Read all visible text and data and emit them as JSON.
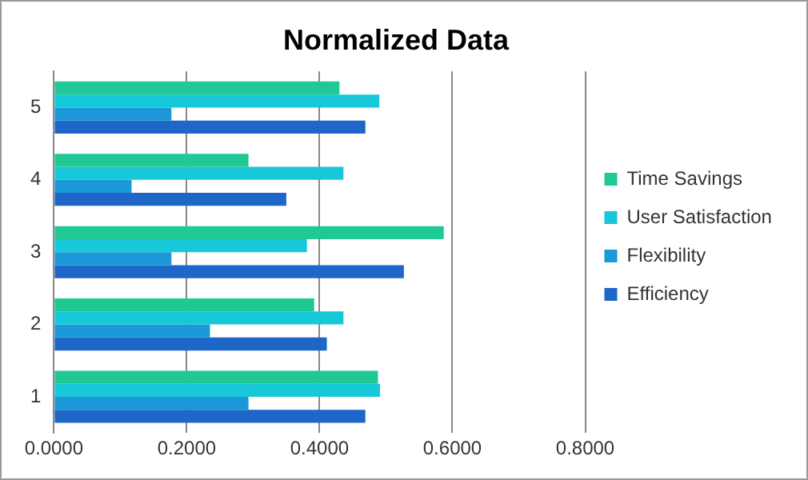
{
  "chart_data": {
    "type": "bar",
    "orientation": "horizontal",
    "title": "Normalized Data",
    "categories": [
      "5",
      "4",
      "3",
      "2",
      "1"
    ],
    "series": [
      {
        "name": "Time Savings",
        "color": "#20c896",
        "values": [
          0.43,
          0.293,
          0.587,
          0.392,
          0.488
        ]
      },
      {
        "name": "User Satisfaction",
        "color": "#16c8d8",
        "values": [
          0.49,
          0.436,
          0.381,
          0.436,
          0.491
        ]
      },
      {
        "name": "Flexibility",
        "color": "#1a98d8",
        "values": [
          0.177,
          0.117,
          0.177,
          0.235,
          0.293
        ]
      },
      {
        "name": "Efficiency",
        "color": "#1e66c8",
        "values": [
          0.469,
          0.35,
          0.527,
          0.411,
          0.469
        ]
      }
    ],
    "xlim": [
      0,
      0.8
    ],
    "xticks": [
      {
        "value": 0,
        "label": "0.0000"
      },
      {
        "value": 0.2,
        "label": "0.2000"
      },
      {
        "value": 0.4,
        "label": "0.4000"
      },
      {
        "value": 0.6,
        "label": "0.6000"
      },
      {
        "value": 0.8,
        "label": "0.8000"
      }
    ],
    "grid": "x",
    "legend": "right"
  }
}
